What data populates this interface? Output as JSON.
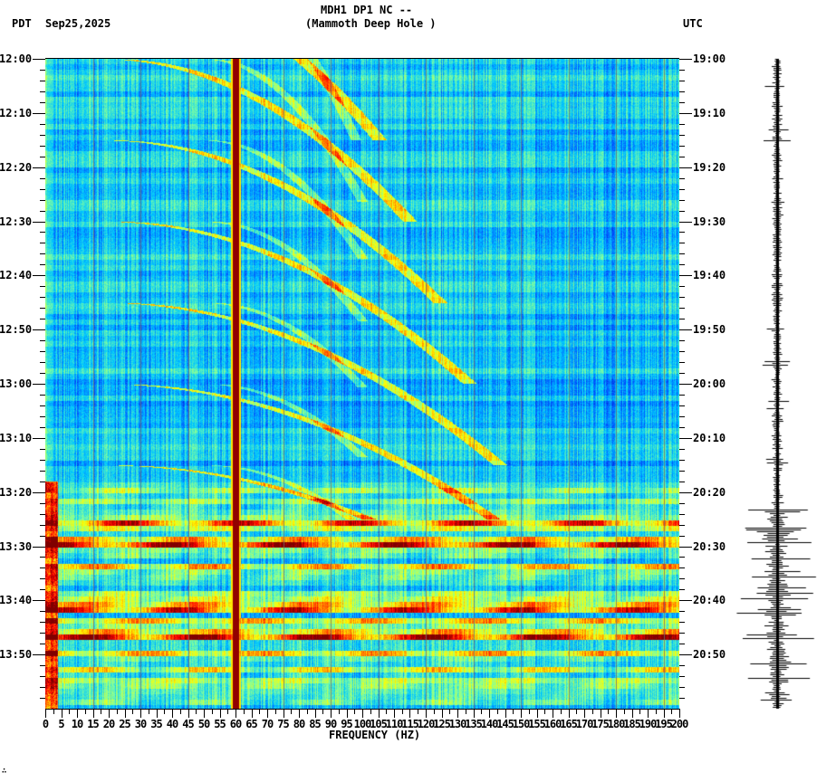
{
  "header": {
    "station": "MDH1 DP1 NC --",
    "location": "(Mammoth Deep Hole )",
    "left_tz": "PDT",
    "date": "Sep25,2025",
    "right_tz": "UTC"
  },
  "footer_mark": "∴",
  "chart_data": {
    "type": "heatmap",
    "title": "MDH1 DP1 NC -- (Mammoth Deep Hole )",
    "subtitle": "Sep25,2025",
    "xlabel": "FREQUENCY (HZ)",
    "ylabel_left": "PDT",
    "ylabel_right": "UTC",
    "xlim": [
      0,
      200
    ],
    "x_ticks": [
      0,
      5,
      10,
      15,
      20,
      25,
      30,
      35,
      40,
      45,
      50,
      55,
      60,
      65,
      70,
      75,
      80,
      85,
      90,
      95,
      100,
      105,
      110,
      115,
      120,
      125,
      130,
      135,
      140,
      145,
      150,
      155,
      160,
      165,
      170,
      175,
      180,
      185,
      190,
      195,
      200
    ],
    "y_ticks_left": [
      "12:00",
      "12:10",
      "12:20",
      "12:30",
      "12:40",
      "12:50",
      "13:00",
      "13:10",
      "13:20",
      "13:30",
      "13:40",
      "13:50"
    ],
    "y_ticks_right": [
      "19:00",
      "19:10",
      "19:20",
      "19:30",
      "19:40",
      "19:50",
      "20:00",
      "20:10",
      "20:20",
      "20:30",
      "20:40",
      "20:50"
    ],
    "time_range_minutes": 120,
    "colormap": [
      "#00008f",
      "#0050ff",
      "#00c8ff",
      "#7fffa0",
      "#ffff00",
      "#ff7f00",
      "#ff0000",
      "#800000"
    ],
    "grid_vertical_every_hz": 15,
    "persistent_lines": [
      {
        "freq_hz": 60,
        "level": "max"
      }
    ],
    "strong_broadband_rows_minutes": [
      85.5,
      89.5,
      101.5,
      106.5
    ],
    "moderate_broadband_rows_minutes": [
      88,
      93,
      100.5,
      103.5,
      105,
      109,
      112
    ],
    "low_freq_noise_onset_minute": 78,
    "arcing_tones": "curved narrowband tones sweeping from ~20 Hz up to ~100 Hz over ~15 min, repeating throughout 12:00-13:25",
    "seismogram_trace": "small amplitude 12:00-13:20, large amplitude bursts 13:25-13:58"
  }
}
